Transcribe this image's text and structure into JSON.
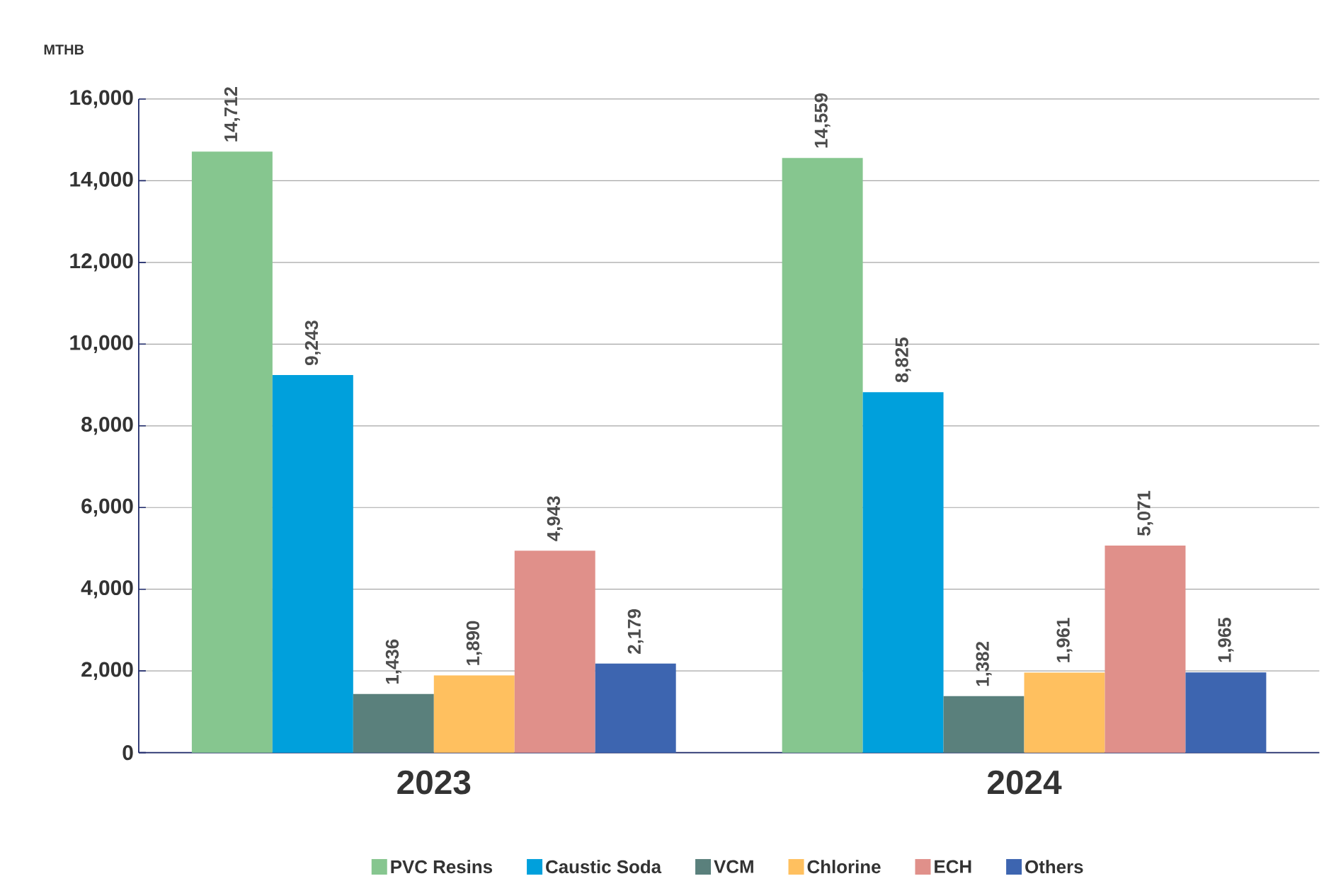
{
  "chart_data": {
    "type": "bar",
    "ylabel": "MTHB",
    "categories": [
      "2023",
      "2024"
    ],
    "series": [
      {
        "name": "PVC Resins",
        "color": "#86c68f",
        "values": [
          14712,
          14559
        ],
        "value_labels": [
          "14,712",
          "14,559"
        ]
      },
      {
        "name": "Caustic Soda",
        "color": "#00a0dc",
        "values": [
          9243,
          8825
        ],
        "value_labels": [
          "9,243",
          "8,825"
        ]
      },
      {
        "name": "VCM",
        "color": "#5a807c",
        "values": [
          1436,
          1382
        ],
        "value_labels": [
          "1,436",
          "1,382"
        ]
      },
      {
        "name": "Chlorine",
        "color": "#ffc05f",
        "values": [
          1890,
          1961
        ],
        "value_labels": [
          "1,890",
          "1,961"
        ]
      },
      {
        "name": "ECH",
        "color": "#e0908a",
        "values": [
          4943,
          5071
        ],
        "value_labels": [
          "4,943",
          "5,071"
        ]
      },
      {
        "name": "Others",
        "color": "#3d65b0",
        "values": [
          2179,
          1965
        ],
        "value_labels": [
          "2,179",
          "1,965"
        ]
      }
    ],
    "ylim": [
      0,
      16000
    ],
    "yticks": [
      {
        "value": 0,
        "label": "0"
      },
      {
        "value": 2000,
        "label": "2,000"
      },
      {
        "value": 4000,
        "label": "4,000"
      },
      {
        "value": 6000,
        "label": "6,000"
      },
      {
        "value": 8000,
        "label": "8,000"
      },
      {
        "value": 10000,
        "label": "10,000"
      },
      {
        "value": 12000,
        "label": "12,000"
      },
      {
        "value": 14000,
        "label": "14,000"
      },
      {
        "value": 16000,
        "label": "16,000"
      }
    ],
    "grid": "y",
    "legend": "bottom"
  }
}
